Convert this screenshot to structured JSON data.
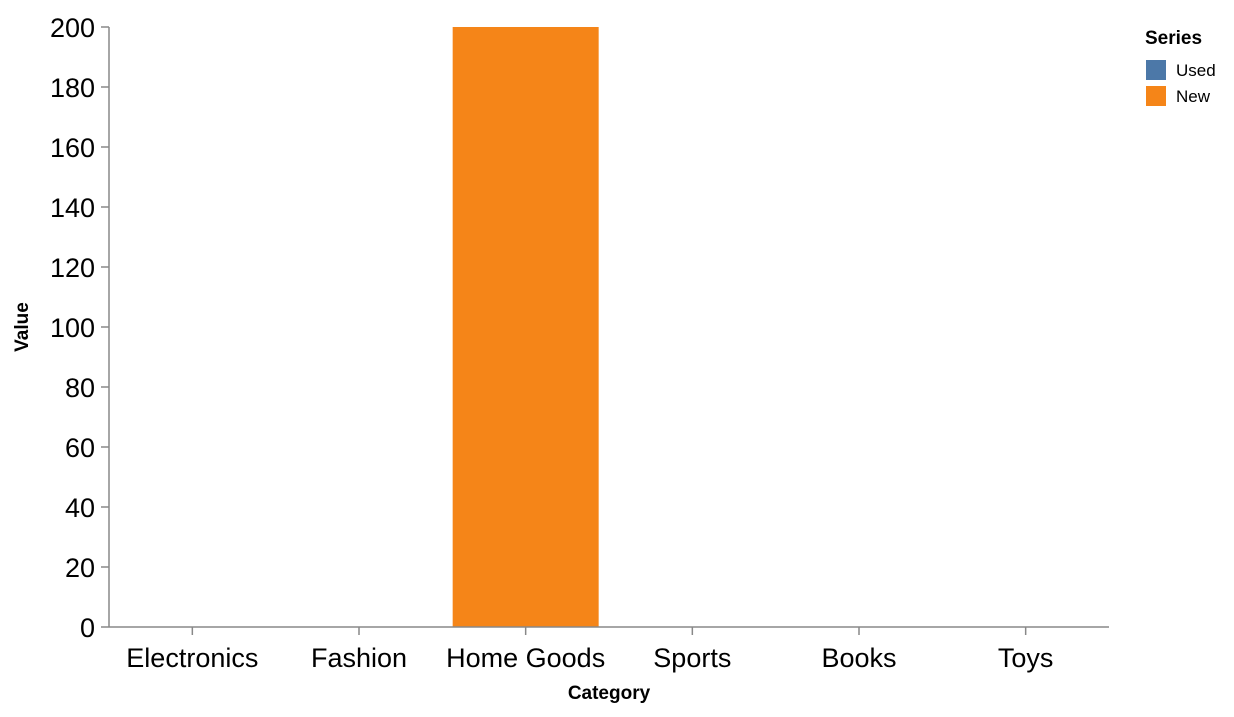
{
  "chart_data": {
    "type": "bar",
    "xlabel": "Category",
    "ylabel": "Value",
    "categories": [
      "Electronics",
      "Fashion",
      "Home Goods",
      "Sports",
      "Books",
      "Toys"
    ],
    "ylim": [
      0,
      200
    ],
    "yticks": [
      0,
      20,
      40,
      60,
      80,
      100,
      120,
      140,
      160,
      180,
      200
    ],
    "grid": false,
    "stacked": true,
    "legend": {
      "title": "Series",
      "placement": "top-right"
    },
    "series": [
      {
        "name": "Used",
        "color": "#4c78a8",
        "values": [
          0,
          0,
          0,
          0,
          0,
          0
        ]
      },
      {
        "name": "New",
        "color": "#f58518",
        "values": [
          0,
          0,
          200,
          0,
          0,
          0
        ]
      }
    ]
  }
}
